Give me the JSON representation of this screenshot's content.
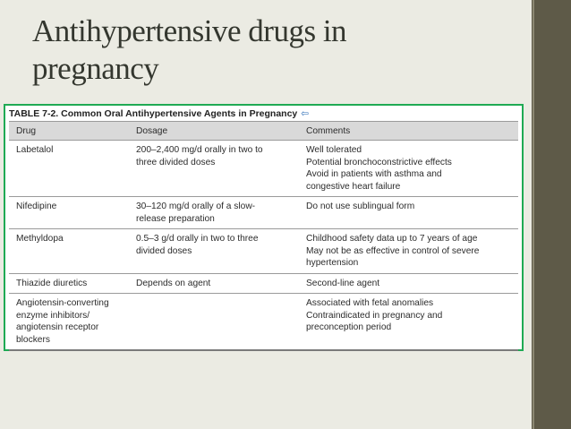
{
  "slide": {
    "title_line1": "Antihypertensive drugs in",
    "title_line2": "pregnancy"
  },
  "table": {
    "caption": "TABLE 7-2. Common Oral Antihypertensive Agents in Pregnancy",
    "caption_icon": "back-arrow-icon",
    "headers": [
      "Drug",
      "Dosage",
      "Comments"
    ],
    "rows": [
      {
        "drug": [
          "Labetalol"
        ],
        "dosage": [
          "200–2,400 mg/d orally in two to",
          "three divided doses"
        ],
        "comments": [
          "Well tolerated",
          "Potential bronchoconstrictive effects",
          "Avoid in patients with asthma and",
          "congestive heart failure"
        ]
      },
      {
        "drug": [
          "Nifedipine"
        ],
        "dosage": [
          "30–120 mg/d orally of a slow-",
          "release preparation"
        ],
        "comments": [
          "Do not use sublingual form"
        ]
      },
      {
        "drug": [
          "Methyldopa"
        ],
        "dosage": [
          "0.5–3 g/d orally in two to three",
          "divided doses"
        ],
        "comments": [
          "Childhood safety data up to 7 years of age",
          "May not be as effective in control of severe",
          "hypertension"
        ]
      },
      {
        "drug": [
          "Thiazide diuretics"
        ],
        "dosage": [
          "Depends on agent"
        ],
        "comments": [
          "Second-line agent"
        ]
      },
      {
        "drug": [
          "Angiotensin-converting",
          "enzyme inhibitors/",
          "angiotensin receptor",
          "blockers"
        ],
        "dosage": [],
        "comments": [
          "Associated with fetal anomalies",
          "Contraindicated in pregnancy and",
          "preconception period"
        ]
      }
    ]
  },
  "colors": {
    "background": "#ebebe3",
    "stripe": "#5e5a48",
    "frame_border": "#1faa54",
    "title": "#34372f"
  }
}
